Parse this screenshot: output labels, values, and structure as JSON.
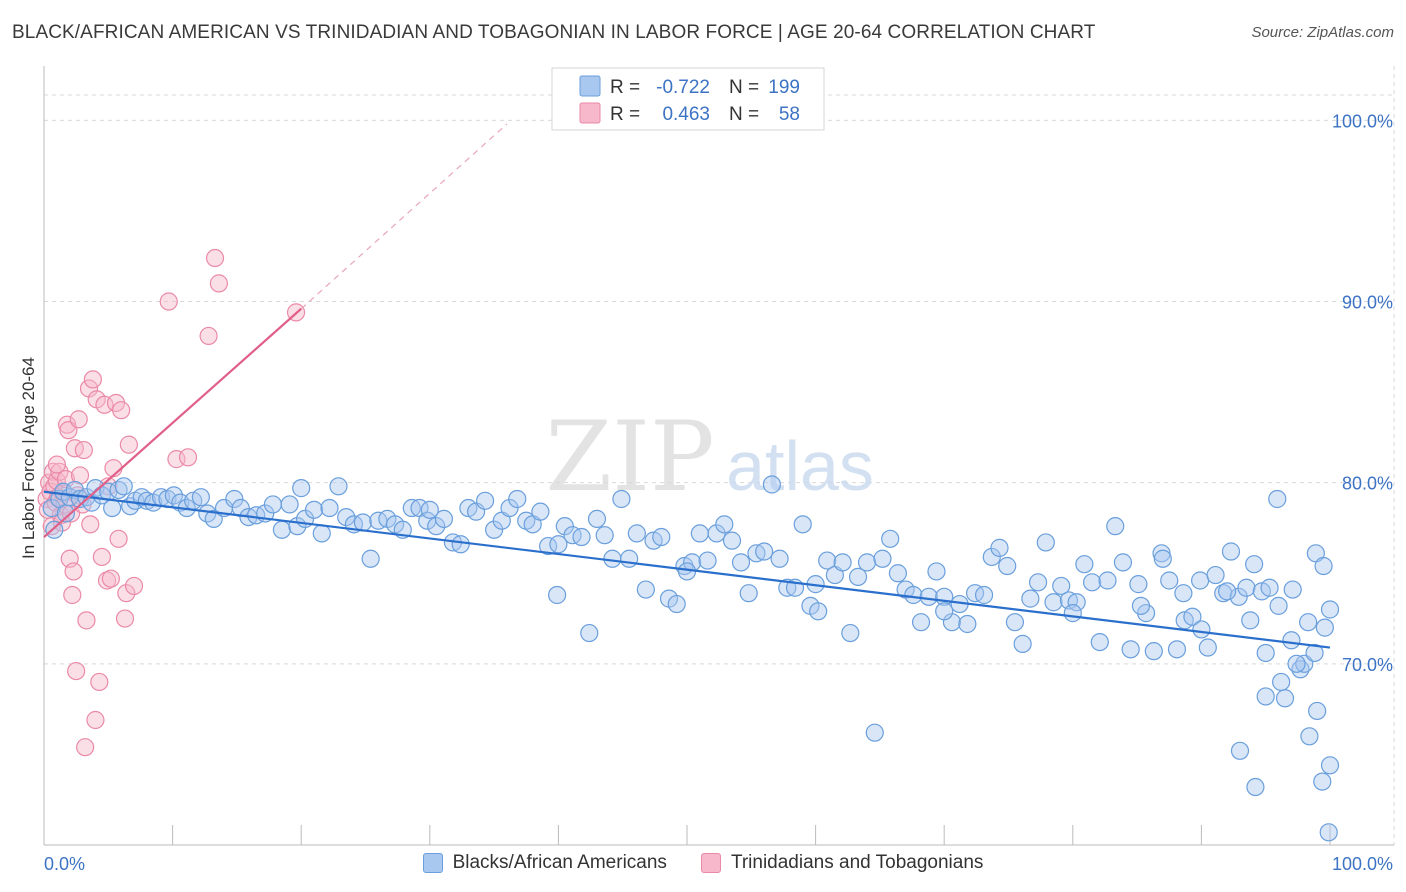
{
  "title": "BLACK/AFRICAN AMERICAN VS TRINIDADIAN AND TOBAGONIAN IN LABOR FORCE | AGE 20-64 CORRELATION CHART",
  "source": "Source: ZipAtlas.com",
  "watermark": {
    "zip": "ZIP",
    "atlas": "atlas"
  },
  "colors": {
    "blue_fill": "#a9c8ef",
    "blue_stroke": "#6a9fdc",
    "blue_line": "#2a6fcc",
    "pink_fill": "#f6b8ca",
    "pink_stroke": "#ea8aa8",
    "pink_line": "#e0608a",
    "axis_text": "#3d73c4",
    "grid": "#d9d9d9"
  },
  "stats_legend": [
    {
      "series": "blue",
      "r_label": "R =",
      "r_value": "-0.722",
      "n_label": "N =",
      "n_value": "199"
    },
    {
      "series": "pink",
      "r_label": "R =",
      "r_value": " 0.463",
      "n_label": "N =",
      "n_value": " 58"
    }
  ],
  "chart_data": {
    "type": "scatter",
    "ylabel": "In Labor Force | Age 20-64",
    "xlim": [
      0,
      100
    ],
    "ylim": [
      60,
      103
    ],
    "x_tick_labels": [
      {
        "value": 0,
        "label": "0.0%"
      },
      {
        "value": 100,
        "label": "100.0%"
      }
    ],
    "y_ticks": [
      {
        "value": 70,
        "label": "70.0%"
      },
      {
        "value": 80,
        "label": "80.0%"
      },
      {
        "value": 90,
        "label": "90.0%"
      },
      {
        "value": 100,
        "label": "100.0%"
      }
    ],
    "series": [
      {
        "name": "Blacks/African Americans",
        "color": "blue",
        "r": -0.722,
        "n": 199,
        "trend": {
          "x": [
            0,
            100
          ],
          "y": [
            79.5,
            70.9
          ]
        },
        "points": [
          [
            0.6,
            78.6
          ],
          [
            0.8,
            77.4
          ],
          [
            1.2,
            79.1
          ],
          [
            1.5,
            79.5
          ],
          [
            1.7,
            78.3
          ],
          [
            2.0,
            79.2
          ],
          [
            2.4,
            79.6
          ],
          [
            2.8,
            79.1
          ],
          [
            3.3,
            79.2
          ],
          [
            3.7,
            78.9
          ],
          [
            4.0,
            79.7
          ],
          [
            4.5,
            79.3
          ],
          [
            5.0,
            79.5
          ],
          [
            5.3,
            78.6
          ],
          [
            5.8,
            79.6
          ],
          [
            6.2,
            79.8
          ],
          [
            6.7,
            78.7
          ],
          [
            7.1,
            79.0
          ],
          [
            7.6,
            79.2
          ],
          [
            8.0,
            79.0
          ],
          [
            8.5,
            78.9
          ],
          [
            9.1,
            79.2
          ],
          [
            9.6,
            79.1
          ],
          [
            10.1,
            79.3
          ],
          [
            10.6,
            78.9
          ],
          [
            11.1,
            78.6
          ],
          [
            11.6,
            79.0
          ],
          [
            12.2,
            79.2
          ],
          [
            12.7,
            78.3
          ],
          [
            13.2,
            78.0
          ],
          [
            14.0,
            78.6
          ],
          [
            14.8,
            79.1
          ],
          [
            15.3,
            78.6
          ],
          [
            15.9,
            78.1
          ],
          [
            16.5,
            78.2
          ],
          [
            17.2,
            78.3
          ],
          [
            17.8,
            78.8
          ],
          [
            18.5,
            77.4
          ],
          [
            19.1,
            78.8
          ],
          [
            19.7,
            77.6
          ],
          [
            20.3,
            78.0
          ],
          [
            21.0,
            78.5
          ],
          [
            21.6,
            77.2
          ],
          [
            22.2,
            78.6
          ],
          [
            22.9,
            79.8
          ],
          [
            23.5,
            78.1
          ],
          [
            24.1,
            77.7
          ],
          [
            24.8,
            77.8
          ],
          [
            25.4,
            75.8
          ],
          [
            26.0,
            77.9
          ],
          [
            26.7,
            78.0
          ],
          [
            27.3,
            77.7
          ],
          [
            27.9,
            77.4
          ],
          [
            28.6,
            78.6
          ],
          [
            29.2,
            78.6
          ],
          [
            29.8,
            77.9
          ],
          [
            30.5,
            77.6
          ],
          [
            31.1,
            78.0
          ],
          [
            31.8,
            76.7
          ],
          [
            32.4,
            76.6
          ],
          [
            33.0,
            78.6
          ],
          [
            33.6,
            78.4
          ],
          [
            34.3,
            79.0
          ],
          [
            35.0,
            77.4
          ],
          [
            35.6,
            77.9
          ],
          [
            36.2,
            78.6
          ],
          [
            36.8,
            79.1
          ],
          [
            37.5,
            77.9
          ],
          [
            38.0,
            77.7
          ],
          [
            38.6,
            78.4
          ],
          [
            39.2,
            76.5
          ],
          [
            39.9,
            73.8
          ],
          [
            40.5,
            77.6
          ],
          [
            41.1,
            77.1
          ],
          [
            41.8,
            77.0
          ],
          [
            42.4,
            71.7
          ],
          [
            43.0,
            78.0
          ],
          [
            43.6,
            77.1
          ],
          [
            44.2,
            75.8
          ],
          [
            44.9,
            79.1
          ],
          [
            45.5,
            75.8
          ],
          [
            46.1,
            77.2
          ],
          [
            46.8,
            74.1
          ],
          [
            47.4,
            76.8
          ],
          [
            48.0,
            77.0
          ],
          [
            48.6,
            73.6
          ],
          [
            49.2,
            73.3
          ],
          [
            49.8,
            75.4
          ],
          [
            50.4,
            75.6
          ],
          [
            51.0,
            77.2
          ],
          [
            51.6,
            75.7
          ],
          [
            52.3,
            77.2
          ],
          [
            52.9,
            77.7
          ],
          [
            53.5,
            76.8
          ],
          [
            54.2,
            75.6
          ],
          [
            54.8,
            73.9
          ],
          [
            55.4,
            76.1
          ],
          [
            56.0,
            76.2
          ],
          [
            56.6,
            79.9
          ],
          [
            57.2,
            75.8
          ],
          [
            57.8,
            74.2
          ],
          [
            58.4,
            74.2
          ],
          [
            59.0,
            77.7
          ],
          [
            59.6,
            73.2
          ],
          [
            60.2,
            72.9
          ],
          [
            60.9,
            75.7
          ],
          [
            61.5,
            74.9
          ],
          [
            62.1,
            75.6
          ],
          [
            62.7,
            71.7
          ],
          [
            63.3,
            74.8
          ],
          [
            64.0,
            75.6
          ],
          [
            64.6,
            66.2
          ],
          [
            65.2,
            75.8
          ],
          [
            65.8,
            76.9
          ],
          [
            66.4,
            75.0
          ],
          [
            67.0,
            74.1
          ],
          [
            67.6,
            73.8
          ],
          [
            68.2,
            72.3
          ],
          [
            68.8,
            73.7
          ],
          [
            69.4,
            75.1
          ],
          [
            70.0,
            73.7
          ],
          [
            70.6,
            72.3
          ],
          [
            71.2,
            73.3
          ],
          [
            71.8,
            72.2
          ],
          [
            72.4,
            73.9
          ],
          [
            73.1,
            73.8
          ],
          [
            73.7,
            75.9
          ],
          [
            74.3,
            76.4
          ],
          [
            74.9,
            75.4
          ],
          [
            75.5,
            72.3
          ],
          [
            76.1,
            71.1
          ],
          [
            76.7,
            73.6
          ],
          [
            77.3,
            74.5
          ],
          [
            77.9,
            76.7
          ],
          [
            78.5,
            73.4
          ],
          [
            79.1,
            74.3
          ],
          [
            79.7,
            73.5
          ],
          [
            80.3,
            73.4
          ],
          [
            80.9,
            75.5
          ],
          [
            81.5,
            74.5
          ],
          [
            82.1,
            71.2
          ],
          [
            82.7,
            74.6
          ],
          [
            83.3,
            77.6
          ],
          [
            83.9,
            75.6
          ],
          [
            84.5,
            70.8
          ],
          [
            85.1,
            74.4
          ],
          [
            85.7,
            72.8
          ],
          [
            86.3,
            70.7
          ],
          [
            86.9,
            76.1
          ],
          [
            87.5,
            74.6
          ],
          [
            88.1,
            70.8
          ],
          [
            88.7,
            72.4
          ],
          [
            89.3,
            72.6
          ],
          [
            89.9,
            74.6
          ],
          [
            90.5,
            70.9
          ],
          [
            91.1,
            74.9
          ],
          [
            91.7,
            73.9
          ],
          [
            92.3,
            76.2
          ],
          [
            92.9,
            73.7
          ],
          [
            93.5,
            74.2
          ],
          [
            94.1,
            75.5
          ],
          [
            94.7,
            74.0
          ],
          [
            95.3,
            74.2
          ],
          [
            95.9,
            79.1
          ],
          [
            96.5,
            68.1
          ],
          [
            97.1,
            74.1
          ],
          [
            97.7,
            69.7
          ],
          [
            98.3,
            72.3
          ],
          [
            98.9,
            76.1
          ],
          [
            99.5,
            75.4
          ],
          [
            20.0,
            79.7
          ],
          [
            30.0,
            78.5
          ],
          [
            40.0,
            76.6
          ],
          [
            50.0,
            75.1
          ],
          [
            60.0,
            74.4
          ],
          [
            70.0,
            72.9
          ],
          [
            80.0,
            72.8
          ],
          [
            90.0,
            71.9
          ],
          [
            95.0,
            70.6
          ],
          [
            98.0,
            70.0
          ],
          [
            85.3,
            73.2
          ],
          [
            87.0,
            75.8
          ],
          [
            88.6,
            73.9
          ],
          [
            92.0,
            74.0
          ],
          [
            93.8,
            72.4
          ],
          [
            95.0,
            68.2
          ],
          [
            96.2,
            69.0
          ],
          [
            97.4,
            70.0
          ],
          [
            98.4,
            66.0
          ],
          [
            99.0,
            67.4
          ],
          [
            99.4,
            63.5
          ],
          [
            99.9,
            60.7
          ],
          [
            100.0,
            64.4
          ],
          [
            100.0,
            73.0
          ],
          [
            99.6,
            72.0
          ],
          [
            98.8,
            70.6
          ],
          [
            97.0,
            71.3
          ],
          [
            96.0,
            73.2
          ],
          [
            94.2,
            63.2
          ],
          [
            93.0,
            65.2
          ]
        ]
      },
      {
        "name": "Trinidadians and Tobagonians",
        "color": "pink",
        "r": 0.463,
        "n": 58,
        "trend": {
          "x": [
            0,
            20
          ],
          "y": [
            77.0,
            89.6
          ]
        },
        "trend_extended": {
          "x": [
            20,
            36
          ],
          "y": [
            89.6,
            99.8
          ]
        },
        "points": [
          [
            0.2,
            79.1
          ],
          [
            0.3,
            78.5
          ],
          [
            0.4,
            80.0
          ],
          [
            0.5,
            79.5
          ],
          [
            0.6,
            77.6
          ],
          [
            0.7,
            80.6
          ],
          [
            0.8,
            79.8
          ],
          [
            0.9,
            78.9
          ],
          [
            1.0,
            80.1
          ],
          [
            1.1,
            79.2
          ],
          [
            1.2,
            80.6
          ],
          [
            1.3,
            78.2
          ],
          [
            1.4,
            77.8
          ],
          [
            1.5,
            79.4
          ],
          [
            1.6,
            78.8
          ],
          [
            1.7,
            80.2
          ],
          [
            1.8,
            83.2
          ],
          [
            1.9,
            82.9
          ],
          [
            2.0,
            75.8
          ],
          [
            2.1,
            78.3
          ],
          [
            2.2,
            73.8
          ],
          [
            2.3,
            75.1
          ],
          [
            2.4,
            81.9
          ],
          [
            2.5,
            69.6
          ],
          [
            2.6,
            79.3
          ],
          [
            2.7,
            83.5
          ],
          [
            2.8,
            80.4
          ],
          [
            3.0,
            78.8
          ],
          [
            3.1,
            81.8
          ],
          [
            3.2,
            65.4
          ],
          [
            3.3,
            72.4
          ],
          [
            3.5,
            85.2
          ],
          [
            3.6,
            77.7
          ],
          [
            3.8,
            85.7
          ],
          [
            4.0,
            66.9
          ],
          [
            4.1,
            84.6
          ],
          [
            4.3,
            69.0
          ],
          [
            4.5,
            75.9
          ],
          [
            4.7,
            84.3
          ],
          [
            4.9,
            74.6
          ],
          [
            5.0,
            79.8
          ],
          [
            5.2,
            74.7
          ],
          [
            5.4,
            80.8
          ],
          [
            5.6,
            84.4
          ],
          [
            5.8,
            76.9
          ],
          [
            6.0,
            84.0
          ],
          [
            6.3,
            72.5
          ],
          [
            6.4,
            73.9
          ],
          [
            6.6,
            82.1
          ],
          [
            7.0,
            74.3
          ],
          [
            9.7,
            90.0
          ],
          [
            10.3,
            81.3
          ],
          [
            11.2,
            81.4
          ],
          [
            12.8,
            88.1
          ],
          [
            13.3,
            92.4
          ],
          [
            13.6,
            91.0
          ],
          [
            19.6,
            89.4
          ],
          [
            1.0,
            81.0
          ]
        ]
      }
    ],
    "legend": [
      "Blacks/African Americans",
      "Trinidadians and Tobagonians"
    ],
    "legend_position": "bottom",
    "grid": true
  }
}
